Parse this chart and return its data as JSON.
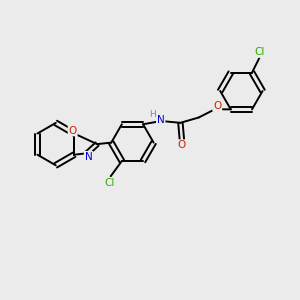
{
  "background_color": "#ebebeb",
  "bond_color": "#000000",
  "atom_colors": {
    "N": "#0000cc",
    "O": "#cc2200",
    "Cl": "#33aa00",
    "H": "#888888"
  },
  "figsize": [
    3.0,
    3.0
  ],
  "dpi": 100,
  "xlim": [
    0,
    10
  ],
  "ylim": [
    0,
    10
  ]
}
